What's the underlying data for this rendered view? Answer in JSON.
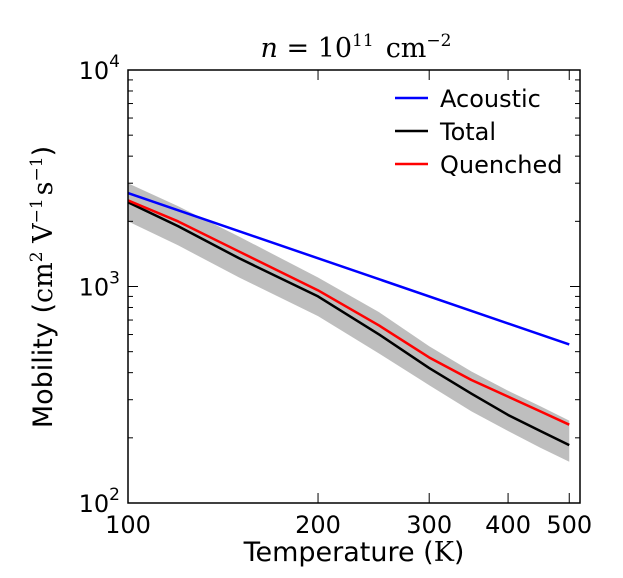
{
  "chart_data": {
    "type": "line",
    "title": {
      "prefix": "n",
      "eq": " = ",
      "base": "10",
      "exp": "11",
      "unit": "cm",
      "unit_exp": "−2"
    },
    "xlabel": {
      "text": "Temperature (",
      "unit": "K",
      "close": ")"
    },
    "ylabel": {
      "text": "Mobility (",
      "cm": "cm",
      "cm_exp": "2",
      "V": " V",
      "V_exp": "−1",
      "s": "s",
      "s_exp": "−1",
      "close": ")"
    },
    "xscale": "log",
    "yscale": "log",
    "xlim": [
      100,
      520
    ],
    "ylim": [
      100,
      10000
    ],
    "xticks": [
      {
        "value": 100,
        "label": "100"
      },
      {
        "value": 200,
        "label": "200"
      },
      {
        "value": 300,
        "label": "300"
      },
      {
        "value": 400,
        "label": "400"
      },
      {
        "value": 500,
        "label": "500"
      }
    ],
    "yticks": [
      {
        "value": 100,
        "base": "10",
        "exp": "2"
      },
      {
        "value": 1000,
        "base": "10",
        "exp": "3"
      },
      {
        "value": 10000,
        "base": "10",
        "exp": "4"
      }
    ],
    "legend_position": "top-right",
    "series": [
      {
        "name": "Acoustic",
        "color": "#0000ff",
        "x": [
          100,
          500
        ],
        "y": [
          2700,
          540
        ]
      },
      {
        "name": "Total",
        "color": "#000000",
        "x": [
          100,
          120,
          150,
          200,
          250,
          300,
          350,
          400,
          450,
          500
        ],
        "y": [
          2450,
          1900,
          1350,
          900,
          600,
          420,
          320,
          255,
          215,
          185
        ]
      },
      {
        "name": "Quenched",
        "color": "#ff0000",
        "x": [
          100,
          120,
          150,
          200,
          250,
          300,
          350,
          400,
          450,
          500
        ],
        "y": [
          2500,
          2000,
          1450,
          960,
          660,
          470,
          370,
          310,
          265,
          230
        ]
      }
    ],
    "band": {
      "color": "#bebebe",
      "x": [
        100,
        120,
        150,
        200,
        250,
        300,
        350,
        400,
        450,
        500
      ],
      "upper": [
        3000,
        2350,
        1700,
        1100,
        760,
        530,
        405,
        330,
        280,
        240
      ],
      "lower": [
        2000,
        1550,
        1100,
        730,
        490,
        350,
        265,
        215,
        180,
        155
      ]
    }
  }
}
